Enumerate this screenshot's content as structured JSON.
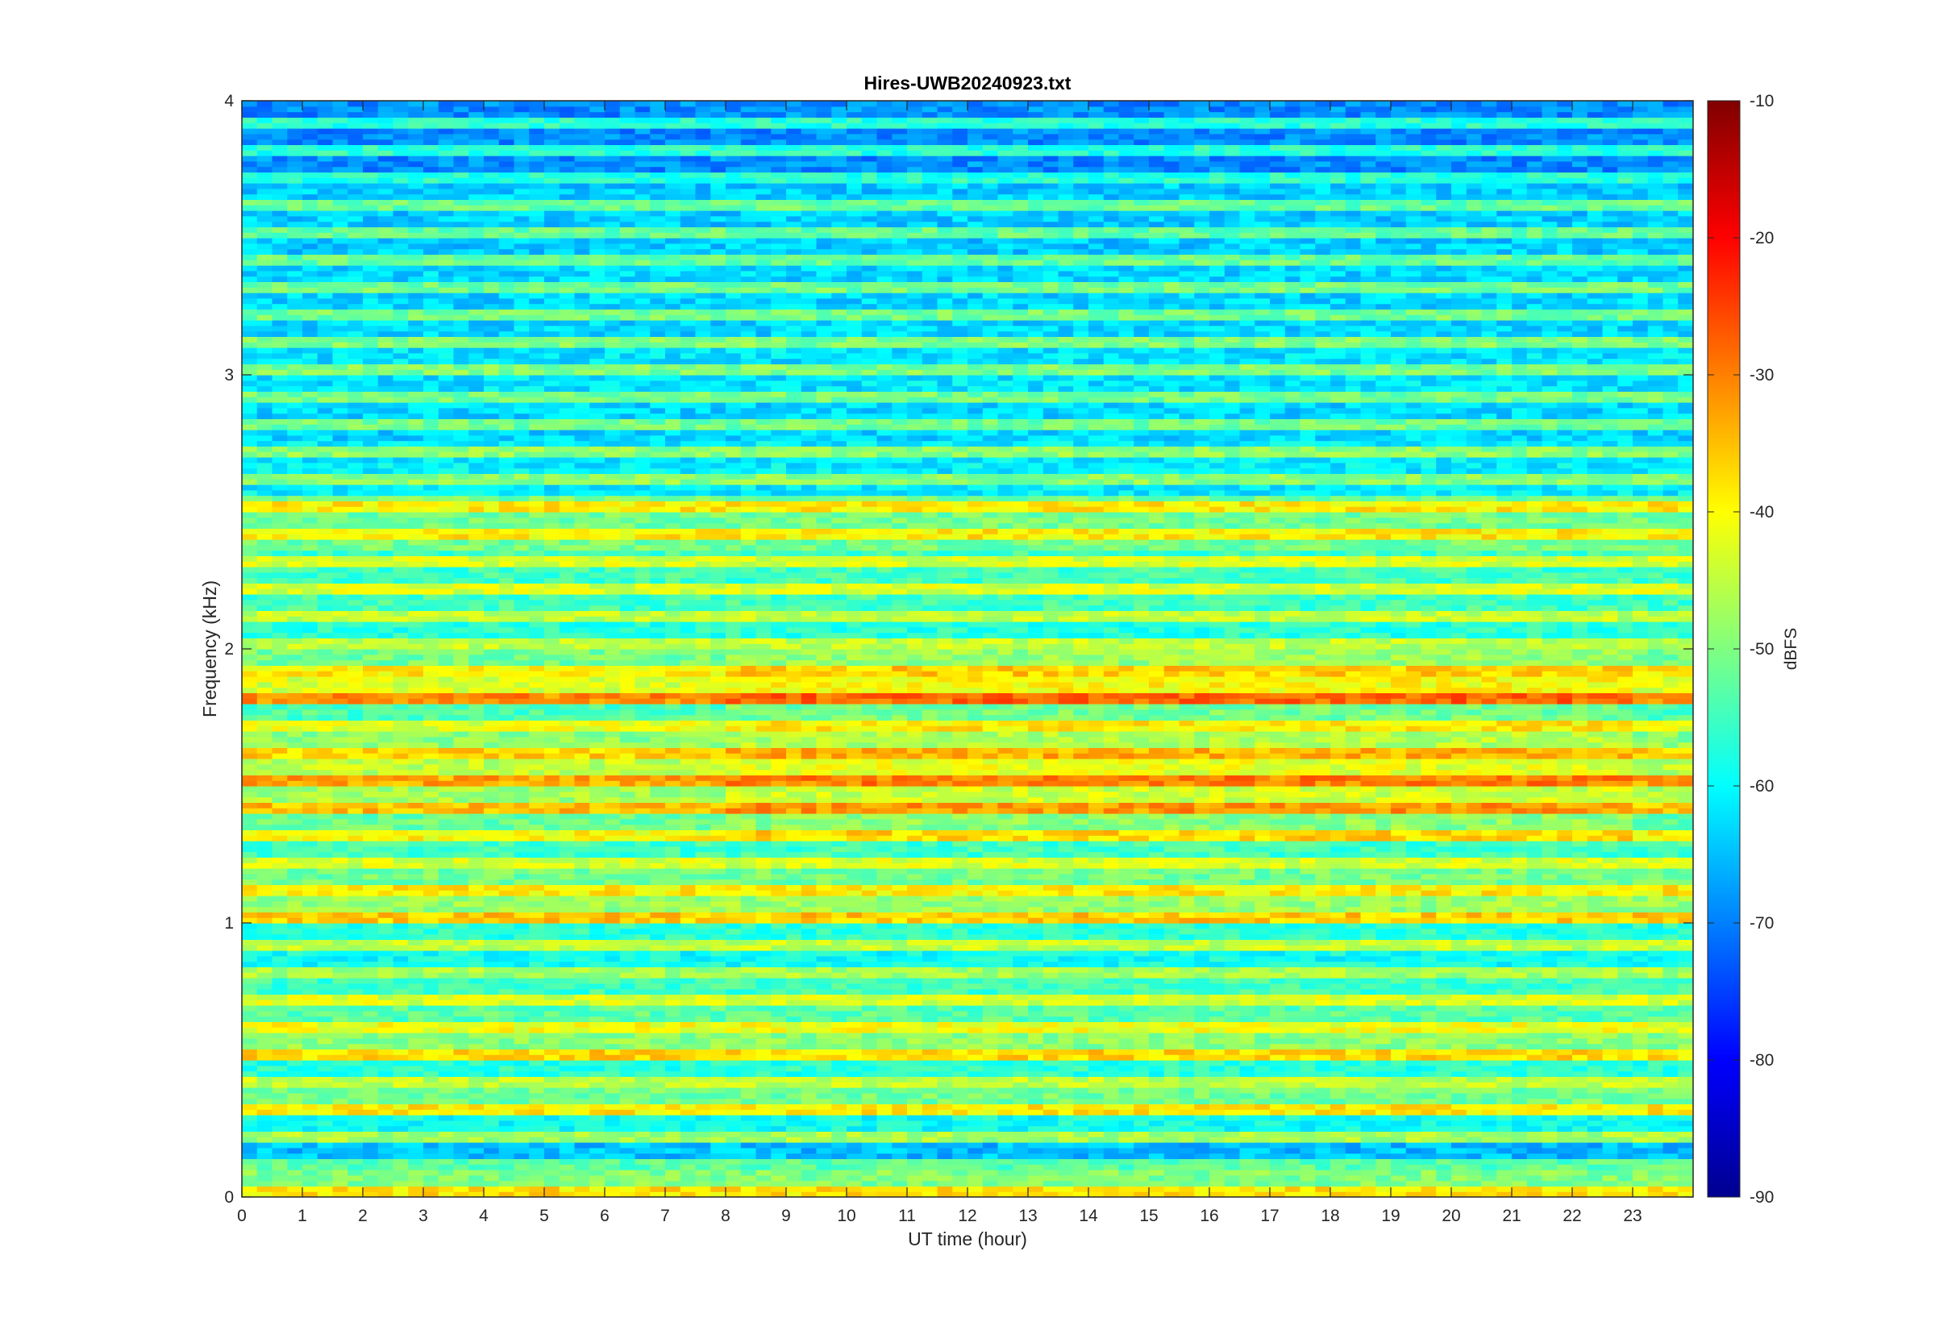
{
  "chart_data": {
    "type": "heatmap",
    "title": "Hires-UWB20240923.txt",
    "xlabel": "UT time (hour)",
    "ylabel": "Frequency (kHz)",
    "xlim": [
      0,
      24
    ],
    "ylim": [
      0,
      4
    ],
    "x_ticks": [
      0,
      1,
      2,
      3,
      4,
      5,
      6,
      7,
      8,
      9,
      10,
      11,
      12,
      13,
      14,
      15,
      16,
      17,
      18,
      19,
      20,
      21,
      22,
      23
    ],
    "y_ticks": [
      0,
      1,
      2,
      3,
      4
    ],
    "colorbar": {
      "label": "dBFS",
      "colormap": "jet",
      "range": [
        -90,
        -10
      ],
      "ticks": [
        -10,
        -20,
        -30,
        -40,
        -50,
        -60,
        -70,
        -80,
        -90
      ]
    },
    "bands_khz_dbfs": [
      {
        "f": 0.05,
        "level": -43
      },
      {
        "f": 0.15,
        "level": -58
      },
      {
        "f": 0.25,
        "level": -52
      },
      {
        "f": 0.35,
        "level": -44
      },
      {
        "f": 0.45,
        "level": -50
      },
      {
        "f": 0.55,
        "level": -42
      },
      {
        "f": 0.65,
        "level": -46
      },
      {
        "f": 0.75,
        "level": -48
      },
      {
        "f": 0.85,
        "level": -52
      },
      {
        "f": 0.95,
        "level": -50
      },
      {
        "f": 1.05,
        "level": -41
      },
      {
        "f": 1.15,
        "level": -44
      },
      {
        "f": 1.25,
        "level": -48
      },
      {
        "f": 1.35,
        "level": -45
      },
      {
        "f": 1.45,
        "level": -40
      },
      {
        "f": 1.55,
        "level": -38
      },
      {
        "f": 1.65,
        "level": -42
      },
      {
        "f": 1.75,
        "level": -47
      },
      {
        "f": 1.85,
        "level": -36
      },
      {
        "f": 1.95,
        "level": -44
      },
      {
        "f": 2.05,
        "level": -50
      },
      {
        "f": 2.25,
        "level": -48
      },
      {
        "f": 2.45,
        "level": -44
      },
      {
        "f": 2.65,
        "level": -54
      },
      {
        "f": 2.85,
        "level": -56
      },
      {
        "f": 3.05,
        "level": -55
      },
      {
        "f": 3.25,
        "level": -56
      },
      {
        "f": 3.55,
        "level": -57
      },
      {
        "f": 3.85,
        "level": -62
      }
    ]
  },
  "figure": {
    "background": "#ffffff",
    "axis_color": "#262626"
  }
}
